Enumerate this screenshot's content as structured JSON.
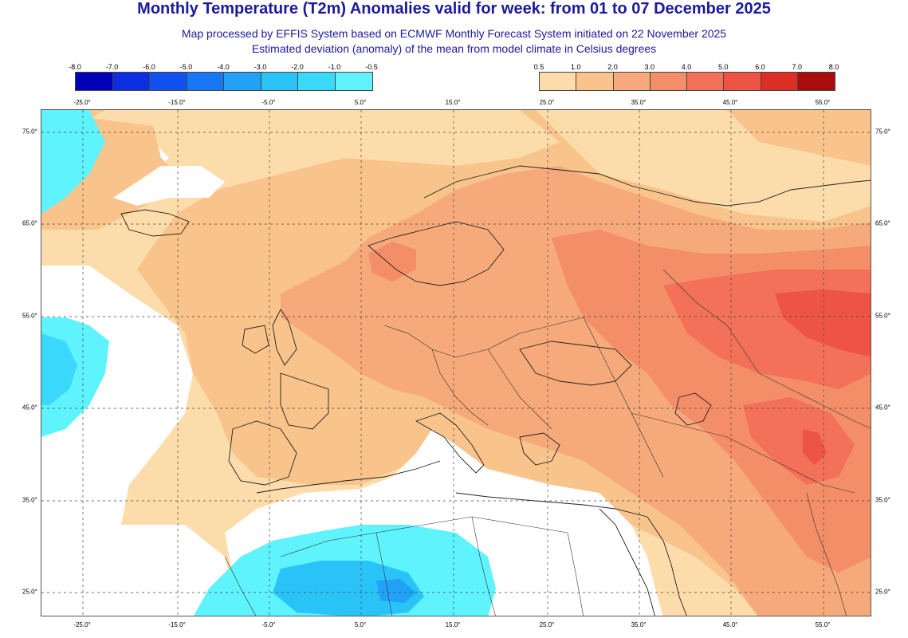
{
  "title": "Monthly Temperature (T2m) Anomalies valid for week: from 01 to 07 December 2025",
  "subtitle1": "Map processed by EFFIS System based on ECMWF Monthly Forecast System initiated on 22 November 2025",
  "subtitle2": "Estimated deviation (anomaly) of the mean from model climate in Celsius degrees",
  "legend_cold": {
    "ticks": [
      "-8.0",
      "-7.0",
      "-6.0",
      "-5.0",
      "-4.0",
      "-3.0",
      "-2.0",
      "-1.0",
      "-0.5"
    ],
    "colors": [
      "#0000b8",
      "#0a2ee0",
      "#0f52f0",
      "#1877f5",
      "#21a2f7",
      "#2ac3f8",
      "#3ad9fb",
      "#5ef3fd"
    ]
  },
  "legend_warm": {
    "ticks": [
      "0.5",
      "1.0",
      "2.0",
      "3.0",
      "4.0",
      "5.0",
      "6.0",
      "7.0",
      "8.0"
    ],
    "colors": [
      "#fcdcaa",
      "#f9c38c",
      "#f6a97a",
      "#f48e68",
      "#f27158",
      "#ee5443",
      "#dc2e25",
      "#a80c0c"
    ]
  },
  "longitude_labels": [
    "-25.0°",
    "-15.0°",
    "-5.0°",
    "5.0°",
    "15.0°",
    "25.0°",
    "35.0°",
    "45.0°",
    "55.0°"
  ],
  "latitude_labels": [
    "75.0°",
    "65.0°",
    "55.0°",
    "45.0°",
    "35.0°",
    "25.0°"
  ],
  "colors": {
    "title": "#1a1a9c",
    "coast": "#222222",
    "gridline": "#444444"
  }
}
